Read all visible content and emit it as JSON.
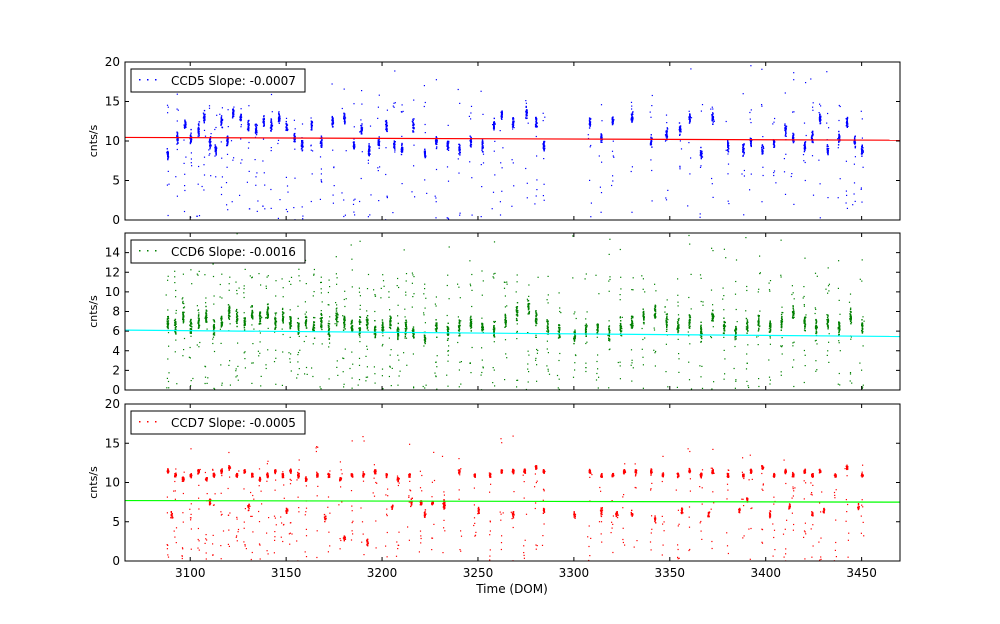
{
  "chart_data": {
    "type": "scatter",
    "xlabel": "Time (DOM)",
    "x_ticks": [
      3100,
      3150,
      3200,
      3250,
      3300,
      3350,
      3400,
      3450
    ],
    "xlim": [
      3066,
      3470
    ],
    "panels": [
      {
        "id": "ccd5",
        "legend": "CCD5 Slope: -0.0007",
        "ylabel": "cnts/s",
        "ylim": [
          0,
          20
        ],
        "y_ticks": [
          0,
          5,
          10,
          15,
          20
        ],
        "point_color": "#0000ff",
        "fit_color": "#ff0000",
        "fit_line": {
          "x": [
            3066,
            3470
          ],
          "y": [
            10.45,
            10.1
          ]
        },
        "band_center": 11.0,
        "band_spread": 2.2,
        "scatter_max": 20,
        "scatter_frac": 0.25,
        "clusters": [
          [
            3088,
            8.3
          ],
          [
            3093,
            10.5
          ],
          [
            3097,
            12.0
          ],
          [
            3100,
            10.5
          ],
          [
            3104,
            11.5
          ],
          [
            3107,
            13.0
          ],
          [
            3110,
            10.0
          ],
          [
            3113,
            9.0
          ],
          [
            3116,
            12.5
          ],
          [
            3119,
            10.0
          ],
          [
            3122,
            13.5
          ],
          [
            3126,
            13.0
          ],
          [
            3130,
            12.0
          ],
          [
            3134,
            11.5
          ],
          [
            3138,
            12.5
          ],
          [
            3142,
            12.0
          ],
          [
            3146,
            13.0
          ],
          [
            3150,
            12.0
          ],
          [
            3154,
            10.5
          ],
          [
            3158,
            9.5
          ],
          [
            3163,
            12.0
          ],
          [
            3168,
            10.0
          ],
          [
            3174,
            12.5
          ],
          [
            3180,
            13.0
          ],
          [
            3185,
            9.5
          ],
          [
            3189,
            11.5
          ],
          [
            3193,
            9.0
          ],
          [
            3198,
            10.0
          ],
          [
            3202,
            12.0
          ],
          [
            3206,
            9.5
          ],
          [
            3210,
            9.0
          ],
          [
            3216,
            12.0
          ],
          [
            3222,
            8.5
          ],
          [
            3228,
            10.0
          ],
          [
            3234,
            9.5
          ],
          [
            3240,
            9.0
          ],
          [
            3246,
            10.0
          ],
          [
            3252,
            9.5
          ],
          [
            3258,
            12.0
          ],
          [
            3262,
            13.5
          ],
          [
            3268,
            12.5
          ],
          [
            3275,
            13.5
          ],
          [
            3280,
            12.5
          ],
          [
            3284,
            9.5
          ],
          [
            3308,
            12.5
          ],
          [
            3314,
            10.5
          ],
          [
            3320,
            12.5
          ],
          [
            3330,
            13.0
          ],
          [
            3340,
            10.0
          ],
          [
            3348,
            11.0
          ],
          [
            3355,
            11.5
          ],
          [
            3360,
            13.0
          ],
          [
            3366,
            8.5
          ],
          [
            3372,
            13.0
          ],
          [
            3380,
            9.5
          ],
          [
            3388,
            9.0
          ],
          [
            3392,
            10.0
          ],
          [
            3398,
            9.0
          ],
          [
            3404,
            10.0
          ],
          [
            3410,
            11.5
          ],
          [
            3414,
            10.5
          ],
          [
            3420,
            9.5
          ],
          [
            3424,
            10.5
          ],
          [
            3428,
            13.0
          ],
          [
            3432,
            9.0
          ],
          [
            3438,
            10.5
          ],
          [
            3442,
            12.5
          ],
          [
            3446,
            10.0
          ],
          [
            3450,
            9.0
          ]
        ]
      },
      {
        "id": "ccd6",
        "legend": "CCD6 Slope: -0.0016",
        "ylabel": "cnts/s",
        "ylim": [
          0,
          16
        ],
        "y_ticks": [
          0,
          2,
          4,
          6,
          8,
          10,
          12,
          14
        ],
        "point_color": "#008000",
        "fit_color": "#00ffff",
        "fit_line": {
          "x": [
            3066,
            3470
          ],
          "y": [
            6.1,
            5.45
          ]
        },
        "band_center": 7.0,
        "band_spread": 2.4,
        "scatter_max": 16,
        "scatter_frac": 0.45,
        "clusters": [
          [
            3088,
            7.0
          ],
          [
            3092,
            6.5
          ],
          [
            3096,
            7.5
          ],
          [
            3100,
            6.5
          ],
          [
            3104,
            7.0
          ],
          [
            3108,
            7.5
          ],
          [
            3112,
            6.5
          ],
          [
            3116,
            7.0
          ],
          [
            3120,
            8.0
          ],
          [
            3124,
            7.5
          ],
          [
            3128,
            7.0
          ],
          [
            3132,
            8.0
          ],
          [
            3136,
            7.5
          ],
          [
            3140,
            8.0
          ],
          [
            3144,
            7.0
          ],
          [
            3148,
            7.5
          ],
          [
            3152,
            7.0
          ],
          [
            3156,
            6.5
          ],
          [
            3160,
            7.0
          ],
          [
            3164,
            6.5
          ],
          [
            3168,
            7.0
          ],
          [
            3172,
            6.0
          ],
          [
            3176,
            7.5
          ],
          [
            3180,
            7.0
          ],
          [
            3184,
            6.5
          ],
          [
            3188,
            6.5
          ],
          [
            3192,
            7.0
          ],
          [
            3196,
            6.0
          ],
          [
            3200,
            6.5
          ],
          [
            3204,
            7.0
          ],
          [
            3208,
            6.0
          ],
          [
            3212,
            6.5
          ],
          [
            3216,
            6.0
          ],
          [
            3222,
            5.5
          ],
          [
            3228,
            6.5
          ],
          [
            3234,
            6.0
          ],
          [
            3240,
            6.5
          ],
          [
            3246,
            7.0
          ],
          [
            3252,
            6.5
          ],
          [
            3258,
            6.0
          ],
          [
            3264,
            7.0
          ],
          [
            3270,
            8.0
          ],
          [
            3276,
            8.5
          ],
          [
            3280,
            7.5
          ],
          [
            3286,
            6.5
          ],
          [
            3292,
            6.0
          ],
          [
            3300,
            5.5
          ],
          [
            3306,
            6.0
          ],
          [
            3312,
            6.5
          ],
          [
            3318,
            6.0
          ],
          [
            3324,
            6.5
          ],
          [
            3330,
            7.0
          ],
          [
            3336,
            7.5
          ],
          [
            3342,
            8.0
          ],
          [
            3348,
            7.0
          ],
          [
            3354,
            6.5
          ],
          [
            3360,
            7.0
          ],
          [
            3366,
            6.0
          ],
          [
            3372,
            7.5
          ],
          [
            3378,
            6.5
          ],
          [
            3384,
            6.0
          ],
          [
            3390,
            6.5
          ],
          [
            3396,
            7.0
          ],
          [
            3402,
            6.5
          ],
          [
            3408,
            7.0
          ],
          [
            3414,
            8.0
          ],
          [
            3420,
            7.0
          ],
          [
            3426,
            6.5
          ],
          [
            3432,
            7.0
          ],
          [
            3438,
            6.5
          ],
          [
            3444,
            7.5
          ],
          [
            3450,
            6.5
          ]
        ]
      },
      {
        "id": "ccd7",
        "legend": "CCD7 Slope: -0.0005",
        "ylabel": "cnts/s",
        "ylim": [
          0,
          20
        ],
        "y_ticks": [
          0,
          5,
          10,
          15,
          20
        ],
        "point_color": "#ff0000",
        "fit_color": "#00ff00",
        "fit_line": {
          "x": [
            3066,
            3470
          ],
          "y": [
            7.7,
            7.5
          ]
        },
        "band_center": 11.0,
        "band_spread": 0.8,
        "scatter_max": 16,
        "scatter_frac": 0.35,
        "clusters": [
          [
            3088,
            11.5
          ],
          [
            3092,
            11.0
          ],
          [
            3096,
            10.5
          ],
          [
            3100,
            11.0
          ],
          [
            3104,
            11.5
          ],
          [
            3108,
            10.5
          ],
          [
            3112,
            11.0
          ],
          [
            3116,
            11.5
          ],
          [
            3120,
            12.0
          ],
          [
            3124,
            11.0
          ],
          [
            3128,
            11.5
          ],
          [
            3132,
            11.0
          ],
          [
            3136,
            10.5
          ],
          [
            3140,
            11.0
          ],
          [
            3144,
            11.5
          ],
          [
            3148,
            11.0
          ],
          [
            3152,
            11.5
          ],
          [
            3156,
            11.0
          ],
          [
            3160,
            10.5
          ],
          [
            3166,
            11.0
          ],
          [
            3172,
            11.0
          ],
          [
            3178,
            10.5
          ],
          [
            3184,
            11.0
          ],
          [
            3190,
            11.0
          ],
          [
            3196,
            11.5
          ],
          [
            3202,
            11.0
          ],
          [
            3208,
            10.5
          ],
          [
            3214,
            11.0
          ],
          [
            3220,
            7.5
          ],
          [
            3226,
            7.5
          ],
          [
            3232,
            7.0
          ],
          [
            3240,
            11.5
          ],
          [
            3248,
            11.0
          ],
          [
            3256,
            11.0
          ],
          [
            3262,
            11.5
          ],
          [
            3268,
            11.5
          ],
          [
            3274,
            11.5
          ],
          [
            3280,
            12.0
          ],
          [
            3284,
            11.5
          ],
          [
            3308,
            11.5
          ],
          [
            3314,
            11.0
          ],
          [
            3320,
            11.0
          ],
          [
            3326,
            11.5
          ],
          [
            3332,
            11.5
          ],
          [
            3340,
            11.5
          ],
          [
            3346,
            11.0
          ],
          [
            3354,
            11.0
          ],
          [
            3360,
            11.5
          ],
          [
            3366,
            11.0
          ],
          [
            3372,
            11.5
          ],
          [
            3380,
            11.0
          ],
          [
            3388,
            11.0
          ],
          [
            3392,
            11.5
          ],
          [
            3398,
            12.0
          ],
          [
            3404,
            11.0
          ],
          [
            3410,
            11.5
          ],
          [
            3414,
            11.0
          ],
          [
            3420,
            11.5
          ],
          [
            3424,
            11.0
          ],
          [
            3428,
            11.5
          ],
          [
            3436,
            11.0
          ],
          [
            3442,
            12.0
          ],
          [
            3450,
            11.0
          ]
        ],
        "secondary_clusters": [
          [
            3090,
            6.0
          ],
          [
            3110,
            7.5
          ],
          [
            3130,
            7.0
          ],
          [
            3150,
            6.5
          ],
          [
            3170,
            5.5
          ],
          [
            3180,
            3.0
          ],
          [
            3192,
            2.5
          ],
          [
            3205,
            7.0
          ],
          [
            3215,
            7.5
          ],
          [
            3222,
            6.0
          ],
          [
            3232,
            7.5
          ],
          [
            3250,
            6.5
          ],
          [
            3268,
            6.0
          ],
          [
            3284,
            6.5
          ],
          [
            3300,
            6.0
          ],
          [
            3314,
            6.5
          ],
          [
            3322,
            6.0
          ],
          [
            3330,
            6.0
          ],
          [
            3342,
            5.5
          ],
          [
            3356,
            6.5
          ],
          [
            3370,
            6.0
          ],
          [
            3386,
            6.5
          ],
          [
            3390,
            8.0
          ],
          [
            3402,
            6.0
          ],
          [
            3412,
            7.0
          ],
          [
            3424,
            6.0
          ],
          [
            3430,
            6.5
          ],
          [
            3448,
            7.0
          ]
        ]
      }
    ]
  }
}
